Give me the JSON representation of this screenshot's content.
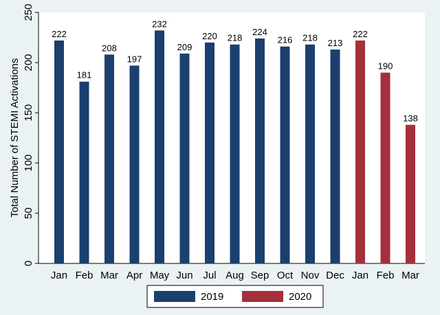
{
  "chart_data": {
    "type": "bar",
    "title": "",
    "xlabel": "",
    "ylabel": "Total Number of STEMI Activations",
    "ylim": [
      0,
      250
    ],
    "yticks": [
      0,
      50,
      100,
      150,
      200,
      250
    ],
    "grid": false,
    "legend_position": "bottom",
    "categories": [
      "Jan",
      "Feb",
      "Mar",
      "Apr",
      "May",
      "Jun",
      "Jul",
      "Aug",
      "Sep",
      "Oct",
      "Nov",
      "Dec",
      "Jan",
      "Feb",
      "Mar"
    ],
    "series": [
      {
        "name": "2019",
        "color": "#1b3f6e",
        "values": [
          222,
          181,
          208,
          197,
          232,
          209,
          220,
          218,
          224,
          216,
          218,
          213,
          null,
          null,
          null
        ]
      },
      {
        "name": "2020",
        "color": "#a3303a",
        "values": [
          null,
          null,
          null,
          null,
          null,
          null,
          null,
          null,
          null,
          null,
          null,
          null,
          222,
          190,
          138
        ]
      }
    ]
  }
}
